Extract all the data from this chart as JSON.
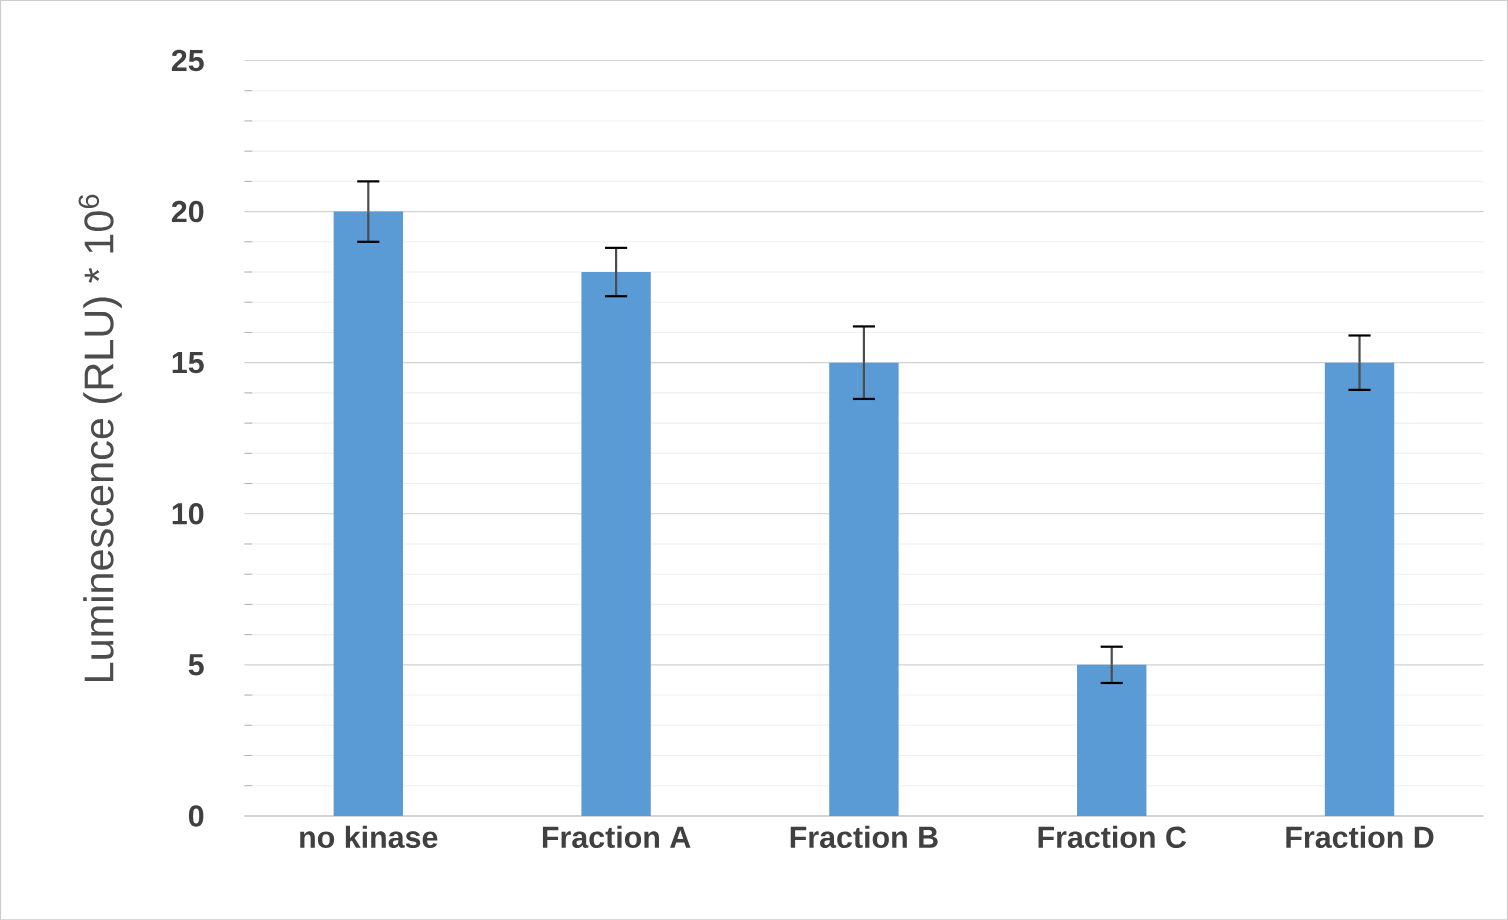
{
  "chart_data": {
    "type": "bar",
    "ylabel": "Luminescence (RLU) * 10$^{6}$",
    "categories": [
      "no kinase",
      "Fraction A",
      "Fraction B",
      "Fraction C",
      "Fraction D"
    ],
    "values": [
      20,
      18,
      15,
      5,
      15
    ],
    "errors": [
      1,
      0.8,
      1.2,
      0.6,
      0.9
    ],
    "color": "#5b9bd5",
    "ylim": [
      0,
      25
    ],
    "yticks": [
      0,
      5,
      10,
      15,
      20,
      25
    ],
    "grid": "y"
  }
}
